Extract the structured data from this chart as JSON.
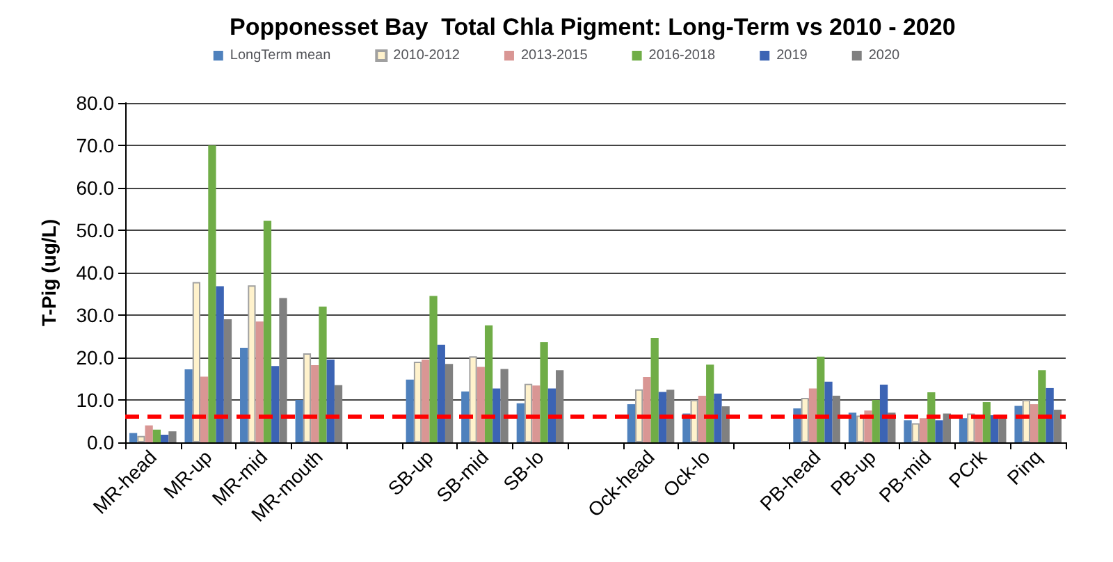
{
  "chart_data": {
    "type": "bar",
    "title": "Popponesset Bay  Total Chla Pigment: Long-Term vs 2010 - 2020",
    "ylabel": "T-Pig (ug/L)",
    "categories": [
      "MR-head",
      "MR-up",
      "MR-mid",
      "MR-mouth",
      null,
      "SB-up",
      "SB-mid",
      "SB-lo",
      null,
      "Ock-head",
      "Ock-lo",
      null,
      "PB-head",
      "PB-up",
      "PB-mid",
      "PCrk",
      "Pinq"
    ],
    "series": [
      {
        "name": "LongTerm mean",
        "color": "#4f81bd",
        "values": [
          2.2,
          17.2,
          22.3,
          10,
          null,
          14.8,
          12,
          9.2,
          null,
          9,
          6.8,
          null,
          8,
          7,
          5.2,
          5.7,
          8.6
        ]
      },
      {
        "name": "2010-2012",
        "color": "#fff2cc",
        "values": [
          1.5,
          37.8,
          37,
          21,
          null,
          19,
          20.3,
          13.8,
          null,
          12.5,
          10,
          null,
          10.5,
          6.3,
          4.5,
          6.8,
          10
        ]
      },
      {
        "name": "2013-2015",
        "color": "#d99694",
        "values": [
          4,
          15.5,
          28.5,
          18.2,
          null,
          19.5,
          17.8,
          13.4,
          null,
          15.4,
          11,
          null,
          12.7,
          7.5,
          5.7,
          6.5,
          9
        ]
      },
      {
        "name": "2016-2018",
        "color": "#70ad47",
        "values": [
          3,
          70,
          52.2,
          32,
          null,
          34.5,
          27.6,
          23.6,
          null,
          24.6,
          18.3,
          null,
          20.2,
          10,
          11.8,
          9.5,
          17
        ]
      },
      {
        "name": "2019",
        "color": "#3c64b4",
        "values": [
          1.8,
          36.8,
          18,
          19.5,
          null,
          23,
          12.7,
          12.7,
          null,
          11.9,
          11.5,
          null,
          14.3,
          13.6,
          5.2,
          6.4,
          12.8
        ]
      },
      {
        "name": "2020",
        "color": "#808080",
        "values": [
          2.6,
          29,
          34,
          13.5,
          null,
          18.5,
          17.3,
          17,
          null,
          12.4,
          8.5,
          null,
          11,
          7,
          6.8,
          6.5,
          7.7
        ]
      }
    ],
    "ylim": [
      0,
      80
    ],
    "yticks": [
      {
        "value": 0,
        "label": "0.0"
      },
      {
        "value": 10,
        "label": "10.0"
      },
      {
        "value": 20,
        "label": "20.0"
      },
      {
        "value": 30,
        "label": "30.0"
      },
      {
        "value": 40,
        "label": "40.0"
      },
      {
        "value": 50,
        "label": "50.0"
      },
      {
        "value": 60,
        "label": "60.0"
      },
      {
        "value": 70,
        "label": "70.0"
      },
      {
        "value": 80,
        "label": "80.0"
      }
    ],
    "ref_lines": [
      {
        "axis": "y",
        "value": 6,
        "color": "#ff0000",
        "line_style": "dashed"
      }
    ],
    "grid": "y",
    "legend": "top"
  }
}
